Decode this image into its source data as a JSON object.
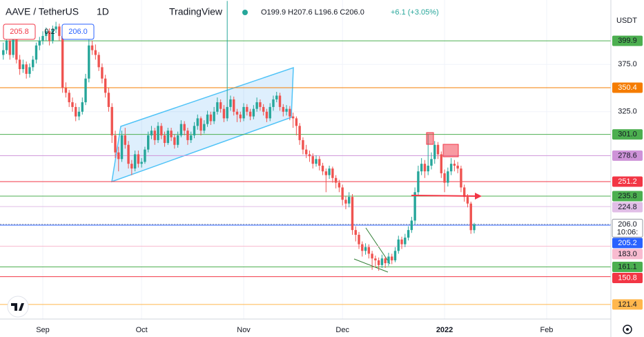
{
  "chart_data": {
    "type": "candlestick",
    "header": {
      "symbol": "AAVE / TetherUS",
      "interval": "1D",
      "brand": "TradingView",
      "ohlc_text": "O199.9 H207.6 L196.6 C206.0",
      "change": "+6.1 (+3.05%)",
      "sell": "205.8",
      "spread": "0.2",
      "buy": "206.0"
    },
    "currency": "USDT",
    "countdown": "10:06:",
    "up_color": "#26a69a",
    "down_color": "#ef5350",
    "xlim": [
      -13,
      172.5
    ],
    "xticks": [
      {
        "value": 0,
        "label": "Sep"
      },
      {
        "value": 30,
        "label": "Oct"
      },
      {
        "value": 61,
        "label": "Nov"
      },
      {
        "value": 91,
        "label": "Dec"
      },
      {
        "value": 122,
        "label": "2022"
      },
      {
        "value": 153,
        "label": "Feb"
      }
    ],
    "ylim": [
      106,
      443
    ],
    "yticks": [
      {
        "value": 375,
        "label": "375.0"
      },
      {
        "value": 325,
        "label": "325.0"
      }
    ],
    "levels": [
      {
        "value": 399.9,
        "color": "#4caf50",
        "text_color": "#131722"
      },
      {
        "value": 350.4,
        "color": "#f57c00",
        "text_color": "#ffffff"
      },
      {
        "value": 301,
        "label": "301.0",
        "color": "#4caf50",
        "text_color": "#131722"
      },
      {
        "value": 278.6,
        "color": "#ce93d8",
        "text_color": "#131722"
      },
      {
        "value": 251.2,
        "color": "#f23645",
        "text_color": "#ffffff"
      },
      {
        "value": 235.8,
        "color": "#4caf50",
        "text_color": "#131722"
      },
      {
        "value": 224.8,
        "color": "#e1bee7",
        "text_color": "#131722"
      },
      {
        "value": 206,
        "label": "206.0",
        "color": "#9598a1",
        "text_color": "#131722",
        "current": true
      },
      {
        "value": 205.2,
        "color": "#2962ff",
        "text_color": "#ffffff"
      },
      {
        "value": 183,
        "label": "183.0",
        "color": "#f8bbd0",
        "text_color": "#131722"
      },
      {
        "value": 161.1,
        "color": "#4caf50",
        "text_color": "#131722"
      },
      {
        "value": 150.8,
        "color": "#f23645",
        "text_color": "#ffffff"
      },
      {
        "value": 121.4,
        "color": "#ffb74d",
        "text_color": "#131722"
      }
    ],
    "x": [
      -12,
      -11,
      -10,
      -9,
      -8,
      -7,
      -6,
      -5,
      -4,
      -3,
      -2,
      -1,
      0,
      1,
      2,
      3,
      4,
      5,
      6,
      7,
      8,
      9,
      10,
      11,
      12,
      13,
      14,
      15,
      16,
      17,
      18,
      19,
      20,
      21,
      22,
      23,
      24,
      25,
      26,
      27,
      28,
      29,
      30,
      31,
      32,
      33,
      34,
      35,
      36,
      37,
      38,
      39,
      40,
      41,
      42,
      43,
      44,
      45,
      46,
      47,
      48,
      49,
      50,
      51,
      52,
      53,
      54,
      55,
      56,
      57,
      58,
      59,
      60,
      61,
      62,
      63,
      64,
      65,
      66,
      67,
      68,
      69,
      70,
      71,
      72,
      73,
      74,
      75,
      76,
      77,
      78,
      79,
      80,
      81,
      82,
      83,
      84,
      85,
      86,
      87,
      88,
      89,
      90,
      91,
      92,
      93,
      94,
      95,
      96,
      97,
      98,
      99,
      100,
      101,
      102,
      103,
      104,
      105,
      106,
      107,
      108,
      109,
      110,
      111,
      112,
      113,
      114,
      115,
      116,
      117,
      118,
      119,
      120,
      121,
      122,
      123,
      124,
      125,
      126,
      127,
      128,
      129,
      130,
      131
    ],
    "candles": [
      [
        385,
        398,
        380,
        390
      ],
      [
        390,
        405,
        386,
        400
      ],
      [
        400,
        404,
        380,
        385
      ],
      [
        385,
        410,
        382,
        405
      ],
      [
        405,
        408,
        376,
        380
      ],
      [
        380,
        385,
        364,
        370
      ],
      [
        370,
        380,
        366,
        375
      ],
      [
        375,
        378,
        360,
        365
      ],
      [
        365,
        376,
        361,
        372
      ],
      [
        372,
        384,
        368,
        380
      ],
      [
        380,
        398,
        376,
        395
      ],
      [
        395,
        404,
        390,
        400
      ],
      [
        400,
        410,
        396,
        405
      ],
      [
        405,
        414,
        400,
        410
      ],
      [
        410,
        413,
        395,
        400
      ],
      [
        400,
        416,
        397,
        412
      ],
      [
        412,
        420,
        408,
        415
      ],
      [
        415,
        418,
        400,
        405
      ],
      [
        405,
        408,
        345,
        350
      ],
      [
        350,
        356,
        340,
        345
      ],
      [
        345,
        348,
        330,
        335
      ],
      [
        335,
        340,
        325,
        330
      ],
      [
        330,
        334,
        315,
        320
      ],
      [
        320,
        330,
        316,
        325
      ],
      [
        325,
        340,
        322,
        335
      ],
      [
        335,
        365,
        332,
        360
      ],
      [
        360,
        402,
        356,
        395
      ],
      [
        395,
        400,
        385,
        390
      ],
      [
        390,
        396,
        380,
        385
      ],
      [
        385,
        388,
        368,
        372
      ],
      [
        372,
        376,
        355,
        360
      ],
      [
        360,
        364,
        340,
        345
      ],
      [
        345,
        350,
        325,
        330
      ],
      [
        330,
        334,
        292,
        300
      ],
      [
        300,
        305,
        276,
        282
      ],
      [
        282,
        288,
        262,
        275
      ],
      [
        275,
        305,
        272,
        300
      ],
      [
        300,
        308,
        286,
        290
      ],
      [
        290,
        294,
        265,
        270
      ],
      [
        270,
        274,
        258,
        265
      ],
      [
        265,
        284,
        262,
        280
      ],
      [
        280,
        284,
        266,
        270
      ],
      [
        270,
        276,
        266,
        272
      ],
      [
        272,
        288,
        270,
        285
      ],
      [
        285,
        304,
        282,
        300
      ],
      [
        300,
        310,
        296,
        305
      ],
      [
        305,
        308,
        290,
        295
      ],
      [
        295,
        314,
        292,
        310
      ],
      [
        310,
        313,
        296,
        300
      ],
      [
        300,
        304,
        288,
        292
      ],
      [
        292,
        308,
        290,
        305
      ],
      [
        305,
        308,
        294,
        298
      ],
      [
        298,
        301,
        286,
        290
      ],
      [
        290,
        304,
        287,
        300
      ],
      [
        300,
        316,
        298,
        312
      ],
      [
        312,
        315,
        300,
        305
      ],
      [
        305,
        308,
        290,
        295
      ],
      [
        295,
        304,
        292,
        300
      ],
      [
        300,
        314,
        297,
        310
      ],
      [
        310,
        322,
        306,
        318
      ],
      [
        318,
        320,
        300,
        305
      ],
      [
        305,
        316,
        302,
        312
      ],
      [
        312,
        326,
        309,
        322
      ],
      [
        322,
        325,
        311,
        315
      ],
      [
        315,
        330,
        312,
        325
      ],
      [
        325,
        340,
        322,
        335
      ],
      [
        335,
        338,
        324,
        328
      ],
      [
        328,
        332,
        314,
        318
      ],
      [
        318,
        442,
        315,
        330
      ],
      [
        330,
        342,
        326,
        338
      ],
      [
        338,
        341,
        321,
        325
      ],
      [
        325,
        328,
        314,
        322
      ],
      [
        322,
        325,
        314,
        318
      ],
      [
        318,
        334,
        315,
        330
      ],
      [
        330,
        333,
        321,
        325
      ],
      [
        325,
        328,
        316,
        320
      ],
      [
        320,
        332,
        317,
        328
      ],
      [
        328,
        340,
        325,
        335
      ],
      [
        335,
        338,
        326,
        330
      ],
      [
        330,
        333,
        321,
        325
      ],
      [
        325,
        328,
        314,
        318
      ],
      [
        318,
        334,
        315,
        330
      ],
      [
        330,
        342,
        326,
        338
      ],
      [
        338,
        346,
        335,
        342
      ],
      [
        342,
        345,
        326,
        330
      ],
      [
        330,
        333,
        320,
        325
      ],
      [
        325,
        332,
        321,
        328
      ],
      [
        328,
        331,
        316,
        320
      ],
      [
        320,
        324,
        308,
        318
      ],
      [
        318,
        320,
        300,
        310
      ],
      [
        310,
        313,
        290,
        295
      ],
      [
        295,
        298,
        280,
        285
      ],
      [
        285,
        290,
        276,
        280
      ],
      [
        280,
        284,
        272,
        278
      ],
      [
        278,
        281,
        265,
        270
      ],
      [
        270,
        279,
        267,
        275
      ],
      [
        275,
        278,
        263,
        268
      ],
      [
        268,
        271,
        258,
        262
      ],
      [
        262,
        265,
        240,
        258
      ],
      [
        258,
        268,
        254,
        265
      ],
      [
        265,
        267,
        250,
        255
      ],
      [
        255,
        258,
        244,
        250
      ],
      [
        250,
        253,
        240,
        245
      ],
      [
        245,
        248,
        226,
        232
      ],
      [
        232,
        236,
        222,
        228
      ],
      [
        228,
        240,
        224,
        235
      ],
      [
        235,
        238,
        195,
        200
      ],
      [
        200,
        204,
        188,
        195
      ],
      [
        195,
        198,
        180,
        185
      ],
      [
        185,
        188,
        172,
        178
      ],
      [
        178,
        186,
        174,
        182
      ],
      [
        182,
        185,
        170,
        175
      ],
      [
        175,
        178,
        158,
        170
      ],
      [
        170,
        173,
        160,
        168
      ],
      [
        168,
        171,
        157,
        163
      ],
      [
        163,
        174,
        160,
        170
      ],
      [
        170,
        172,
        160,
        165
      ],
      [
        165,
        176,
        162,
        172
      ],
      [
        172,
        175,
        164,
        168
      ],
      [
        168,
        182,
        166,
        178
      ],
      [
        178,
        194,
        175,
        190
      ],
      [
        190,
        193,
        180,
        185
      ],
      [
        185,
        196,
        182,
        192
      ],
      [
        192,
        204,
        189,
        200
      ],
      [
        200,
        214,
        197,
        210
      ],
      [
        210,
        245,
        206,
        240
      ],
      [
        240,
        268,
        236,
        262
      ],
      [
        262,
        276,
        258,
        270
      ],
      [
        270,
        274,
        255,
        262
      ],
      [
        262,
        301,
        258,
        268
      ],
      [
        268,
        282,
        264,
        275
      ],
      [
        275,
        294,
        270,
        290
      ],
      [
        290,
        293,
        275,
        280
      ],
      [
        280,
        283,
        255,
        260
      ],
      [
        260,
        264,
        240,
        250
      ],
      [
        250,
        266,
        246,
        262
      ],
      [
        262,
        276,
        258,
        270
      ],
      [
        270,
        274,
        262,
        268
      ],
      [
        268,
        272,
        260,
        265
      ],
      [
        265,
        268,
        240,
        245
      ],
      [
        245,
        248,
        230,
        235
      ],
      [
        235,
        238,
        224,
        228
      ],
      [
        228,
        230,
        196,
        199.9
      ],
      [
        199.9,
        207.6,
        196.6,
        206.0
      ]
    ]
  }
}
